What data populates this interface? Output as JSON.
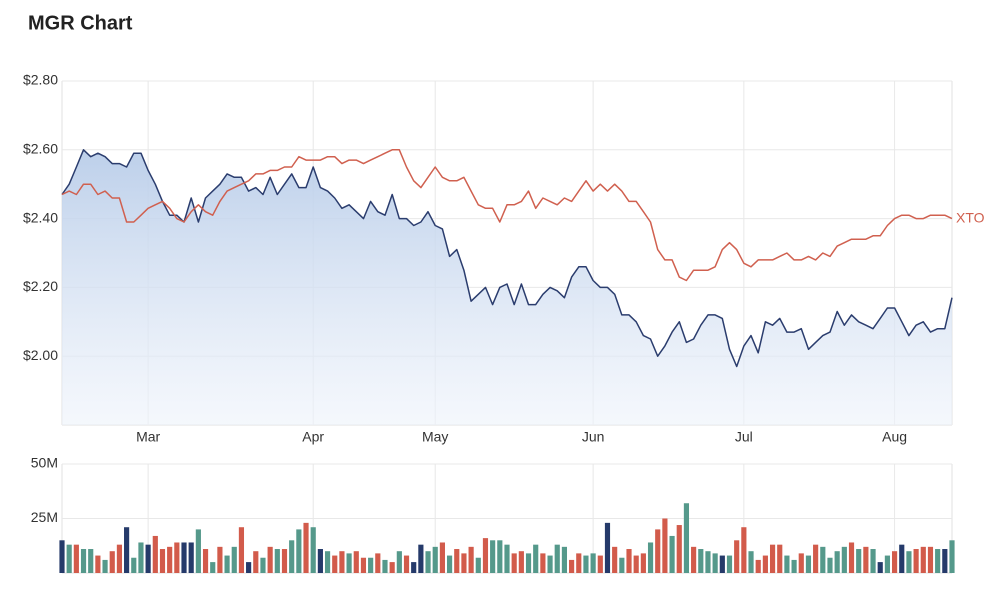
{
  "title": "MGR Chart",
  "chart_data": [
    {
      "type": "line",
      "xlim": [
        0,
        124
      ],
      "xticks": [
        {
          "value": 12,
          "label": "Mar"
        },
        {
          "value": 35,
          "label": "Apr"
        },
        {
          "value": 52,
          "label": "May"
        },
        {
          "value": 74,
          "label": "Jun"
        },
        {
          "value": 95,
          "label": "Jul"
        },
        {
          "value": 116,
          "label": "Aug"
        }
      ],
      "ylim": [
        1.8,
        2.8
      ],
      "yticks": [
        {
          "value": 2.0,
          "label": "$2.00"
        },
        {
          "value": 2.2,
          "label": "$2.20"
        },
        {
          "value": 2.4,
          "label": "$2.40"
        },
        {
          "value": 2.6,
          "label": "$2.60"
        },
        {
          "value": 2.8,
          "label": "$2.80"
        }
      ],
      "grid": true,
      "series": [
        {
          "color": "#2b3d6e",
          "area": true,
          "values": [
            2.47,
            2.5,
            2.55,
            2.6,
            2.58,
            2.59,
            2.58,
            2.56,
            2.56,
            2.55,
            2.59,
            2.59,
            2.54,
            2.5,
            2.45,
            2.41,
            2.41,
            2.39,
            2.46,
            2.39,
            2.46,
            2.48,
            2.5,
            2.53,
            2.52,
            2.52,
            2.48,
            2.49,
            2.47,
            2.52,
            2.47,
            2.5,
            2.53,
            2.49,
            2.49,
            2.55,
            2.49,
            2.48,
            2.46,
            2.43,
            2.44,
            2.42,
            2.4,
            2.45,
            2.42,
            2.41,
            2.47,
            2.4,
            2.4,
            2.38,
            2.39,
            2.42,
            2.38,
            2.37,
            2.29,
            2.31,
            2.25,
            2.16,
            2.18,
            2.2,
            2.15,
            2.2,
            2.21,
            2.15,
            2.21,
            2.15,
            2.15,
            2.18,
            2.2,
            2.19,
            2.17,
            2.23,
            2.26,
            2.26,
            2.22,
            2.2,
            2.2,
            2.18,
            2.12,
            2.12,
            2.1,
            2.06,
            2.05,
            2.0,
            2.03,
            2.07,
            2.1,
            2.04,
            2.05,
            2.09,
            2.12,
            2.12,
            2.11,
            2.02,
            1.97,
            2.03,
            2.06,
            2.01,
            2.1,
            2.09,
            2.11,
            2.07,
            2.07,
            2.08,
            2.02,
            2.04,
            2.06,
            2.07,
            2.13,
            2.09,
            2.12,
            2.1,
            2.09,
            2.08,
            2.11,
            2.14,
            2.14,
            2.1,
            2.06,
            2.09,
            2.1,
            2.07,
            2.08,
            2.08,
            2.17
          ]
        },
        {
          "name": "XTO",
          "color": "#d0604f",
          "values": [
            2.47,
            2.48,
            2.47,
            2.5,
            2.5,
            2.47,
            2.48,
            2.46,
            2.46,
            2.39,
            2.39,
            2.41,
            2.43,
            2.44,
            2.45,
            2.43,
            2.4,
            2.39,
            2.42,
            2.44,
            2.42,
            2.41,
            2.45,
            2.48,
            2.49,
            2.5,
            2.51,
            2.53,
            2.53,
            2.54,
            2.54,
            2.55,
            2.55,
            2.58,
            2.57,
            2.57,
            2.57,
            2.58,
            2.58,
            2.56,
            2.57,
            2.57,
            2.56,
            2.57,
            2.58,
            2.59,
            2.6,
            2.6,
            2.55,
            2.51,
            2.49,
            2.52,
            2.55,
            2.52,
            2.51,
            2.51,
            2.52,
            2.48,
            2.44,
            2.43,
            2.43,
            2.39,
            2.44,
            2.44,
            2.45,
            2.48,
            2.43,
            2.46,
            2.45,
            2.44,
            2.46,
            2.45,
            2.48,
            2.51,
            2.48,
            2.5,
            2.48,
            2.5,
            2.48,
            2.45,
            2.45,
            2.42,
            2.39,
            2.31,
            2.28,
            2.28,
            2.23,
            2.22,
            2.25,
            2.25,
            2.25,
            2.26,
            2.31,
            2.33,
            2.31,
            2.27,
            2.26,
            2.28,
            2.28,
            2.28,
            2.29,
            2.3,
            2.28,
            2.28,
            2.29,
            2.28,
            2.3,
            2.29,
            2.32,
            2.33,
            2.34,
            2.34,
            2.34,
            2.35,
            2.35,
            2.38,
            2.4,
            2.41,
            2.41,
            2.4,
            2.4,
            2.41,
            2.41,
            2.41,
            2.4
          ]
        }
      ]
    },
    {
      "type": "bar",
      "ylim": [
        0,
        50000000
      ],
      "yticks": [
        {
          "value": 25000000,
          "label": "25M"
        },
        {
          "value": 50000000,
          "label": "50M"
        }
      ],
      "grid": true,
      "values": [
        15000000,
        13000000,
        13000000,
        11000000,
        11000000,
        8000000,
        6000000,
        10000000,
        13000000,
        21000000,
        7000000,
        14000000,
        13000000,
        17000000,
        11000000,
        12000000,
        14000000,
        14000000,
        14000000,
        20000000,
        11000000,
        5000000,
        12000000,
        8000000,
        12000000,
        21000000,
        5000000,
        10000000,
        7000000,
        12000000,
        11000000,
        11000000,
        15000000,
        20000000,
        23000000,
        21000000,
        11000000,
        10000000,
        8000000,
        10000000,
        9000000,
        10000000,
        7000000,
        7000000,
        9000000,
        6000000,
        5000000,
        10000000,
        8000000,
        5000000,
        13000000,
        10000000,
        12000000,
        14000000,
        8000000,
        11000000,
        9000000,
        12000000,
        7000000,
        16000000,
        15000000,
        15000000,
        13000000,
        9000000,
        10000000,
        9000000,
        13000000,
        9000000,
        8000000,
        13000000,
        12000000,
        6000000,
        9000000,
        8000000,
        9000000,
        8000000,
        23000000,
        12000000,
        7000000,
        11000000,
        8000000,
        9000000,
        14000000,
        20000000,
        25000000,
        17000000,
        22000000,
        32000000,
        12000000,
        11000000,
        10000000,
        9000000,
        8000000,
        8000000,
        15000000,
        21000000,
        10000000,
        6000000,
        8000000,
        13000000,
        13000000,
        8000000,
        6000000,
        9000000,
        8000000,
        13000000,
        12000000,
        7000000,
        10000000,
        12000000,
        14000000,
        11000000,
        12000000,
        11000000,
        5000000,
        8000000,
        10000000,
        13000000,
        10000000,
        11000000,
        12000000,
        12000000,
        11000000,
        11000000,
        15000000
      ],
      "colors": [
        "#253a6a",
        "#55998b",
        "#d25b4b",
        "#55998b",
        "#55998b",
        "#d25b4b",
        "#55998b",
        "#d25b4b",
        "#d25b4b",
        "#253a6a",
        "#55998b",
        "#55998b",
        "#253a6a",
        "#d25b4b",
        "#d25b4b",
        "#d25b4b",
        "#d25b4b",
        "#253a6a",
        "#253a6a",
        "#55998b",
        "#d25b4b",
        "#55998b",
        "#d25b4b",
        "#55998b",
        "#55998b",
        "#d25b4b",
        "#253a6a",
        "#d25b4b",
        "#55998b",
        "#d25b4b",
        "#55998b",
        "#d25b4b",
        "#55998b",
        "#55998b",
        "#d25b4b",
        "#55998b",
        "#253a6a",
        "#55998b",
        "#d25b4b",
        "#d25b4b",
        "#55998b",
        "#d25b4b",
        "#d25b4b",
        "#55998b",
        "#d25b4b",
        "#55998b",
        "#d25b4b",
        "#55998b",
        "#d25b4b",
        "#253a6a",
        "#253a6a",
        "#55998b",
        "#55998b",
        "#d25b4b",
        "#55998b",
        "#d25b4b",
        "#d25b4b",
        "#d25b4b",
        "#55998b",
        "#d25b4b",
        "#55998b",
        "#55998b",
        "#55998b",
        "#d25b4b",
        "#d25b4b",
        "#55998b",
        "#55998b",
        "#d25b4b",
        "#55998b",
        "#55998b",
        "#55998b",
        "#d25b4b",
        "#d25b4b",
        "#55998b",
        "#55998b",
        "#d25b4b",
        "#253a6a",
        "#d25b4b",
        "#55998b",
        "#d25b4b",
        "#d25b4b",
        "#d25b4b",
        "#55998b",
        "#d25b4b",
        "#d25b4b",
        "#55998b",
        "#d25b4b",
        "#55998b",
        "#d25b4b",
        "#55998b",
        "#55998b",
        "#55998b",
        "#253a6a",
        "#55998b",
        "#d25b4b",
        "#d25b4b",
        "#55998b",
        "#d25b4b",
        "#d25b4b",
        "#d25b4b",
        "#d25b4b",
        "#55998b",
        "#55998b",
        "#d25b4b",
        "#55998b",
        "#d25b4b",
        "#55998b",
        "#55998b",
        "#55998b",
        "#55998b",
        "#d25b4b",
        "#55998b",
        "#d25b4b",
        "#55998b",
        "#253a6a",
        "#55998b",
        "#d25b4b",
        "#253a6a",
        "#55998b",
        "#d25b4b",
        "#d25b4b",
        "#d25b4b",
        "#55998b",
        "#253a6a",
        "#55998b"
      ]
    }
  ]
}
